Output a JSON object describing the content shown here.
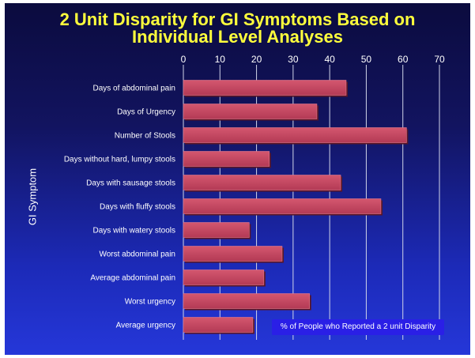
{
  "chart_data": {
    "type": "bar",
    "orientation": "horizontal",
    "title": "2 Unit Disparity for GI Symptoms Based on Individual Level Analyses",
    "title_lines": [
      "2 Unit Disparity for GI Symptoms Based on",
      "Individual Level Analyses"
    ],
    "ylabel": "GI Symptom",
    "xlabel": "",
    "legend_text": "% of People who Reported a 2 unit Disparity",
    "xlim": [
      0,
      70
    ],
    "xticks": [
      "0",
      "10",
      "20",
      "30",
      "40",
      "50",
      "60",
      "70"
    ],
    "grid": "vertical",
    "categories": [
      "Days of abdominal pain",
      "Days of Urgency",
      "Number of Stools",
      "Days without hard, lumpy stools",
      "Days with sausage stools",
      "Days with fluffy stools",
      "Days with watery stools",
      "Worst abdominal pain",
      "Average abdominal pain",
      "Worst urgency",
      "Average urgency"
    ],
    "values": [
      44.5,
      36.5,
      61,
      23.5,
      43,
      54,
      18,
      27,
      22,
      34.5,
      19
    ],
    "colors": {
      "bar": "#b33a55",
      "bar_top": "#d4576f",
      "gridline": "#d0d4e8",
      "title": "#ffff3c",
      "legend_bg": "#2a1fe6"
    }
  }
}
